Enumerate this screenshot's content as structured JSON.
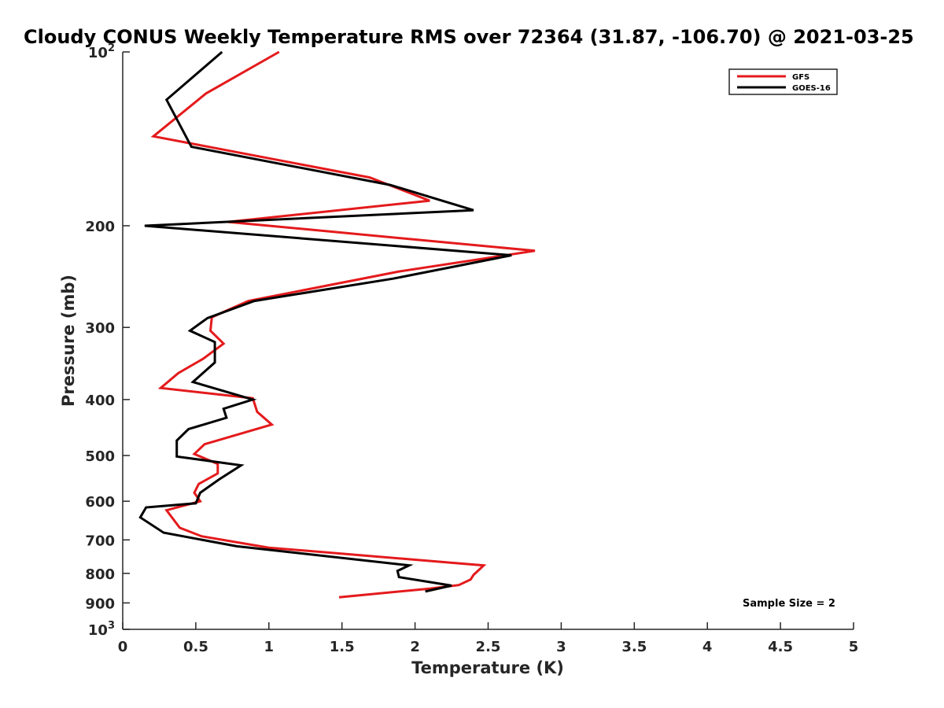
{
  "chart_data": {
    "type": "line",
    "title": "Cloudy CONUS Weekly Temperature RMS over 72364 (31.87, -106.70) @ 2021-03-25",
    "xlabel": "Temperature (K)",
    "ylabel": "Pressure (mb)",
    "xlim": [
      0,
      5
    ],
    "ylim": [
      100,
      1000
    ],
    "y_scale": "log",
    "y_reversed": true,
    "x_ticks": [
      {
        "value": 0,
        "label": "0"
      },
      {
        "value": 0.5,
        "label": "0.5"
      },
      {
        "value": 1,
        "label": "1"
      },
      {
        "value": 1.5,
        "label": "1.5"
      },
      {
        "value": 2,
        "label": "2"
      },
      {
        "value": 2.5,
        "label": "2.5"
      },
      {
        "value": 3,
        "label": "3"
      },
      {
        "value": 3.5,
        "label": "3.5"
      },
      {
        "value": 4,
        "label": "4"
      },
      {
        "value": 4.5,
        "label": "4.5"
      },
      {
        "value": 5,
        "label": "5"
      }
    ],
    "y_ticks": [
      {
        "value": 100,
        "label": "10",
        "exp": "2"
      },
      {
        "value": 200,
        "label": "200",
        "exp": ""
      },
      {
        "value": 300,
        "label": "300",
        "exp": ""
      },
      {
        "value": 400,
        "label": "400",
        "exp": ""
      },
      {
        "value": 500,
        "label": "500",
        "exp": ""
      },
      {
        "value": 600,
        "label": "600",
        "exp": ""
      },
      {
        "value": 700,
        "label": "700",
        "exp": ""
      },
      {
        "value": 800,
        "label": "800",
        "exp": ""
      },
      {
        "value": 900,
        "label": "900",
        "exp": ""
      },
      {
        "value": 1000,
        "label": "10",
        "exp": "3"
      }
    ],
    "grid": false,
    "legend_position": "top-right",
    "series": [
      {
        "name": "GFS",
        "color": "#e41a1c",
        "points": [
          [
            1.07,
            100
          ],
          [
            0.57,
            118
          ],
          [
            0.21,
            140
          ],
          [
            1.69,
            165
          ],
          [
            2.1,
            181
          ],
          [
            0.72,
            197
          ],
          [
            2.82,
            221
          ],
          [
            1.89,
            240
          ],
          [
            0.86,
            270
          ],
          [
            0.61,
            288
          ],
          [
            0.6,
            304
          ],
          [
            0.69,
            320
          ],
          [
            0.55,
            340
          ],
          [
            0.38,
            360
          ],
          [
            0.26,
            382
          ],
          [
            0.89,
            398
          ],
          [
            0.92,
            420
          ],
          [
            1.02,
            442
          ],
          [
            0.56,
            478
          ],
          [
            0.49,
            497
          ],
          [
            0.65,
            517
          ],
          [
            0.65,
            537
          ],
          [
            0.52,
            560
          ],
          [
            0.49,
            580
          ],
          [
            0.53,
            600
          ],
          [
            0.3,
            622
          ],
          [
            0.39,
            667
          ],
          [
            0.54,
            690
          ],
          [
            1.0,
            722
          ],
          [
            2.47,
            775
          ],
          [
            2.4,
            805
          ],
          [
            2.38,
            820
          ],
          [
            2.3,
            838
          ],
          [
            2.1,
            850
          ],
          [
            1.48,
            880
          ]
        ]
      },
      {
        "name": "GOES-16",
        "color": "#000000",
        "points": [
          [
            0.68,
            100
          ],
          [
            0.3,
            121
          ],
          [
            0.47,
            146
          ],
          [
            1.83,
            170
          ],
          [
            2.4,
            188
          ],
          [
            0.15,
            200
          ],
          [
            2.66,
            225
          ],
          [
            1.85,
            247
          ],
          [
            0.9,
            270
          ],
          [
            0.58,
            289
          ],
          [
            0.46,
            304
          ],
          [
            0.63,
            318
          ],
          [
            0.63,
            345
          ],
          [
            0.48,
            373
          ],
          [
            0.89,
            400
          ],
          [
            0.69,
            415
          ],
          [
            0.71,
            430
          ],
          [
            0.45,
            450
          ],
          [
            0.37,
            471
          ],
          [
            0.37,
            502
          ],
          [
            0.81,
            520
          ],
          [
            0.66,
            550
          ],
          [
            0.53,
            580
          ],
          [
            0.5,
            605
          ],
          [
            0.16,
            615
          ],
          [
            0.12,
            640
          ],
          [
            0.28,
            680
          ],
          [
            0.78,
            718
          ],
          [
            1.96,
            775
          ],
          [
            1.88,
            792
          ],
          [
            1.89,
            812
          ],
          [
            2.25,
            840
          ],
          [
            2.07,
            860
          ]
        ]
      }
    ],
    "annotations": [
      {
        "text": "Sample Size = 2"
      }
    ]
  }
}
